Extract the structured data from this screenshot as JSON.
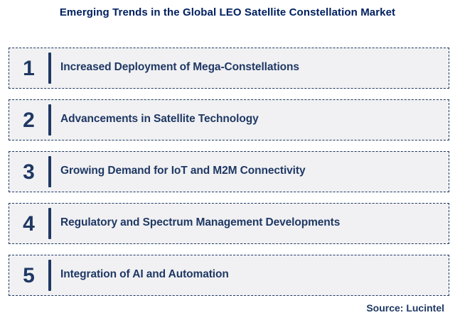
{
  "title": "Emerging Trends in the Global LEO Satellite Constellation Market",
  "items": [
    {
      "number": "1",
      "label": "Increased Deployment of Mega-Constellations"
    },
    {
      "number": "2",
      "label": "Advancements in Satellite Technology"
    },
    {
      "number": "3",
      "label": "Growing Demand for IoT and M2M Connectivity"
    },
    {
      "number": "4",
      "label": "Regulatory and Spectrum Management Developments"
    },
    {
      "number": "5",
      "label": "Integration of AI and Automation"
    }
  ],
  "source": "Source: Lucintel",
  "colors": {
    "navy": "#1F3864",
    "title_navy": "#002060",
    "box_bg": "#F1F1F3"
  }
}
